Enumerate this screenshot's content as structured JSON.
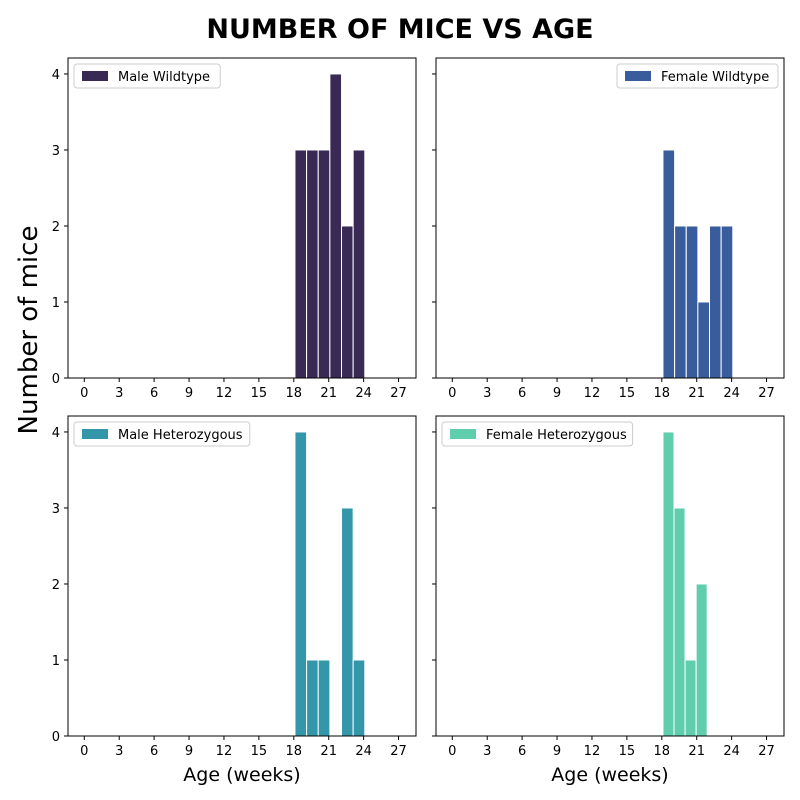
{
  "title": "NUMBER OF MICE VS AGE",
  "ylabel": "Number of mice",
  "chart_data": [
    {
      "type": "histogram",
      "series": [
        {
          "name": "Male Wildtype",
          "color": "#382a54",
          "values": [
            3,
            3,
            3,
            4,
            2,
            3
          ]
        }
      ],
      "bins": [
        18.1,
        19.1,
        20.1,
        21.1,
        22.1,
        23.1,
        24.1
      ],
      "xlim": [
        -1.4,
        28.5
      ],
      "xticks": [
        0,
        3,
        6,
        9,
        12,
        15,
        18,
        21,
        24,
        27
      ],
      "ylim": [
        0,
        4.21
      ],
      "yticks": [
        0,
        1,
        2,
        3,
        4
      ],
      "legend": "upper left"
    },
    {
      "type": "histogram",
      "series": [
        {
          "name": "Female Wildtype",
          "color": "#395d9c",
          "values": [
            3,
            2,
            2,
            1,
            2,
            2
          ]
        }
      ],
      "bins": [
        18.1,
        19.1,
        20.1,
        21.1,
        22.1,
        23.1,
        24.1
      ],
      "xlim": [
        -1.4,
        28.5
      ],
      "xticks": [
        0,
        3,
        6,
        9,
        12,
        15,
        18,
        21,
        24,
        27
      ],
      "ylim": [
        0,
        4.21
      ],
      "yticks": [
        0,
        1,
        2,
        3,
        4
      ],
      "legend": "upper right"
    },
    {
      "type": "histogram",
      "series": [
        {
          "name": "Male Heterozygous",
          "color": "#3497a9",
          "values": [
            4,
            1,
            1,
            0,
            3,
            1
          ]
        }
      ],
      "bins": [
        18.1,
        19.1,
        20.1,
        21.1,
        22.1,
        23.1,
        24.1
      ],
      "xlim": [
        -1.4,
        28.5
      ],
      "xticks": [
        0,
        3,
        6,
        9,
        12,
        15,
        18,
        21,
        24,
        27
      ],
      "ylim": [
        0,
        4.21
      ],
      "yticks": [
        0,
        1,
        2,
        3,
        4
      ],
      "legend": "upper left",
      "xlabel": "Age (weeks)"
    },
    {
      "type": "histogram",
      "series": [
        {
          "name": "Female Heterozygous",
          "color": "#60ceac",
          "values": [
            4,
            3,
            1,
            2
          ]
        }
      ],
      "bins": [
        18.1,
        19.05,
        20.0,
        20.95,
        21.9
      ],
      "xlim": [
        -1.4,
        28.5
      ],
      "xticks": [
        0,
        3,
        6,
        9,
        12,
        15,
        18,
        21,
        24,
        27
      ],
      "ylim": [
        0,
        4.21
      ],
      "yticks": [
        0,
        1,
        2,
        3,
        4
      ],
      "legend": "upper left",
      "xlabel": "Age (weeks)"
    }
  ]
}
